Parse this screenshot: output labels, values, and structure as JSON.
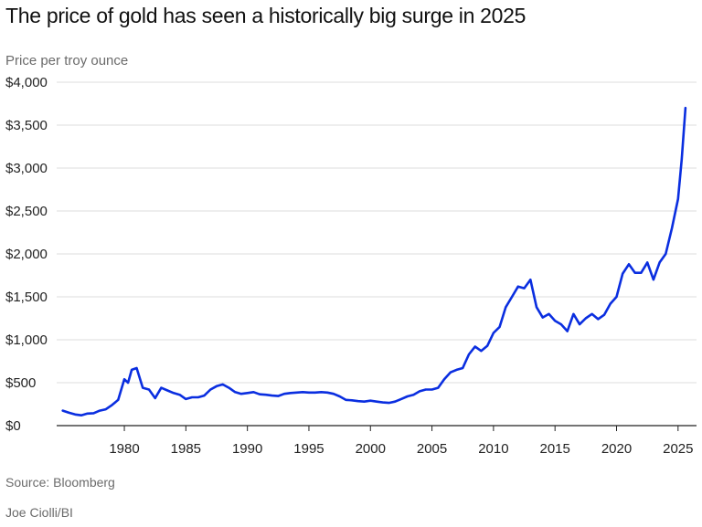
{
  "header": {
    "title": "The price of gold has seen a historically big surge in 2025",
    "subtitle": "Price per troy ounce"
  },
  "footer": {
    "source": "Source: Bloomberg",
    "credit": "Joe Ciolli/BI"
  },
  "colors": {
    "line": "#0a2ee0",
    "grid": "#dcdcdc",
    "axis": "#222222"
  },
  "chart_data": {
    "type": "line",
    "title": "The price of gold has seen a historically big surge in 2025",
    "ylabel": "Price per troy ounce",
    "xlabel": "",
    "xlim": [
      1974.5,
      2026.5
    ],
    "ylim": [
      0,
      4000
    ],
    "grid": true,
    "x_ticks": [
      1980,
      1985,
      1990,
      1995,
      2000,
      2005,
      2010,
      2015,
      2020,
      2025
    ],
    "x_tick_labels": [
      "1980",
      "1985",
      "1990",
      "1995",
      "2000",
      "2005",
      "2010",
      "2015",
      "2020",
      "2025"
    ],
    "y_ticks": [
      0,
      500,
      1000,
      1500,
      2000,
      2500,
      3000,
      3500,
      4000
    ],
    "y_tick_labels": [
      "$0",
      "$500",
      "$1,000",
      "$1,500",
      "$2,000",
      "$2,500",
      "$3,000",
      "$3,500",
      "$4,000"
    ],
    "series": [
      {
        "name": "Gold price",
        "x": [
          1975.0,
          1975.5,
          1976.0,
          1976.5,
          1977.0,
          1977.5,
          1978.0,
          1978.5,
          1979.0,
          1979.5,
          1980.0,
          1980.3,
          1980.6,
          1981.0,
          1981.5,
          1982.0,
          1982.5,
          1983.0,
          1983.5,
          1984.0,
          1984.5,
          1985.0,
          1985.5,
          1986.0,
          1986.5,
          1987.0,
          1987.5,
          1988.0,
          1988.5,
          1989.0,
          1989.5,
          1990.0,
          1990.5,
          1991.0,
          1991.5,
          1992.0,
          1992.5,
          1993.0,
          1993.5,
          1994.0,
          1994.5,
          1995.0,
          1995.5,
          1996.0,
          1996.5,
          1997.0,
          1997.5,
          1998.0,
          1998.5,
          1999.0,
          1999.5,
          2000.0,
          2000.5,
          2001.0,
          2001.5,
          2002.0,
          2002.5,
          2003.0,
          2003.5,
          2004.0,
          2004.5,
          2005.0,
          2005.5,
          2006.0,
          2006.5,
          2007.0,
          2007.5,
          2008.0,
          2008.5,
          2009.0,
          2009.5,
          2010.0,
          2010.5,
          2011.0,
          2011.5,
          2012.0,
          2012.5,
          2013.0,
          2013.5,
          2014.0,
          2014.5,
          2015.0,
          2015.5,
          2016.0,
          2016.5,
          2017.0,
          2017.5,
          2018.0,
          2018.5,
          2019.0,
          2019.5,
          2020.0,
          2020.5,
          2021.0,
          2021.5,
          2022.0,
          2022.5,
          2023.0,
          2023.5,
          2024.0,
          2024.5,
          2025.0,
          2025.3,
          2025.6
        ],
        "values": [
          175,
          150,
          130,
          120,
          140,
          145,
          175,
          190,
          240,
          300,
          540,
          500,
          650,
          670,
          440,
          420,
          320,
          440,
          410,
          380,
          360,
          310,
          330,
          330,
          350,
          420,
          460,
          480,
          440,
          390,
          370,
          380,
          390,
          365,
          360,
          350,
          345,
          370,
          380,
          385,
          390,
          385,
          385,
          390,
          385,
          370,
          340,
          300,
          295,
          285,
          280,
          290,
          280,
          270,
          265,
          280,
          310,
          340,
          360,
          400,
          420,
          420,
          440,
          540,
          620,
          650,
          670,
          830,
          920,
          870,
          930,
          1080,
          1150,
          1380,
          1500,
          1620,
          1600,
          1700,
          1380,
          1260,
          1300,
          1220,
          1180,
          1100,
          1300,
          1180,
          1250,
          1300,
          1240,
          1290,
          1420,
          1500,
          1770,
          1880,
          1780,
          1780,
          1900,
          1700,
          1900,
          2000,
          2300,
          2640,
          3100,
          3700
        ]
      }
    ]
  }
}
